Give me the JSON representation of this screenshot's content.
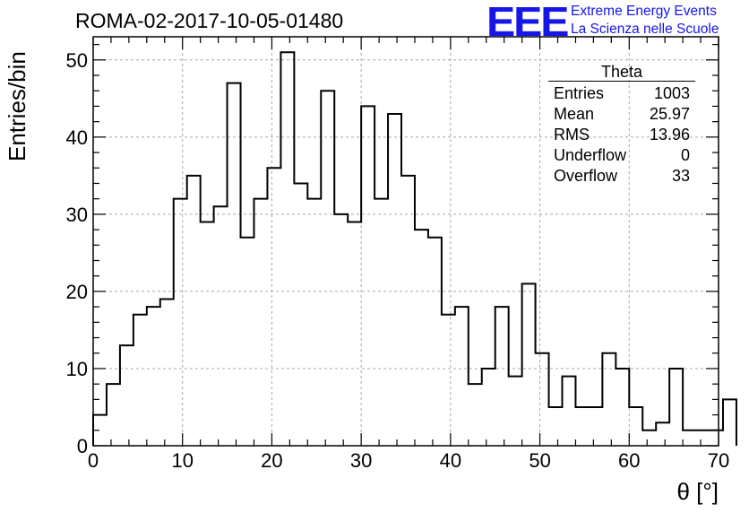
{
  "header": {
    "run_title": "ROMA-02-2017-10-05-01480",
    "logo_mark": "EEE",
    "logo_line1": "Extreme Energy Events",
    "logo_line2": "La Scienza nelle Scuole",
    "logo_color": "#1616e8"
  },
  "stats_box": {
    "title": "Theta",
    "rows": [
      {
        "label": "Entries",
        "value": "1003"
      },
      {
        "label": "Mean",
        "value": "25.97"
      },
      {
        "label": "RMS",
        "value": "13.96"
      },
      {
        "label": "Underflow",
        "value": "0"
      },
      {
        "label": "Overflow",
        "value": "33"
      }
    ]
  },
  "chart_data": {
    "type": "histogram",
    "title": "ROMA-02-2017-10-05-01480",
    "xlabel": "θ [°]",
    "ylabel": "Entries/bin",
    "xlim": [
      0,
      70
    ],
    "ylim": [
      0,
      53
    ],
    "grid": true,
    "x_ticks": [
      0,
      10,
      20,
      30,
      40,
      50,
      60,
      70
    ],
    "y_ticks": [
      0,
      10,
      20,
      30,
      40,
      50
    ],
    "bin_width": 1.5,
    "bin_start": 0,
    "values": [
      4,
      8,
      13,
      17,
      18,
      19,
      32,
      35,
      29,
      31,
      47,
      27,
      32,
      36,
      51,
      34,
      32,
      46,
      30,
      29,
      44,
      32,
      43,
      35,
      28,
      27,
      17,
      18,
      8,
      10,
      18,
      9,
      21,
      12,
      5,
      9,
      5,
      5,
      12,
      10,
      5,
      2,
      3,
      10,
      2,
      2,
      2,
      6
    ],
    "line_color": "#000000"
  }
}
